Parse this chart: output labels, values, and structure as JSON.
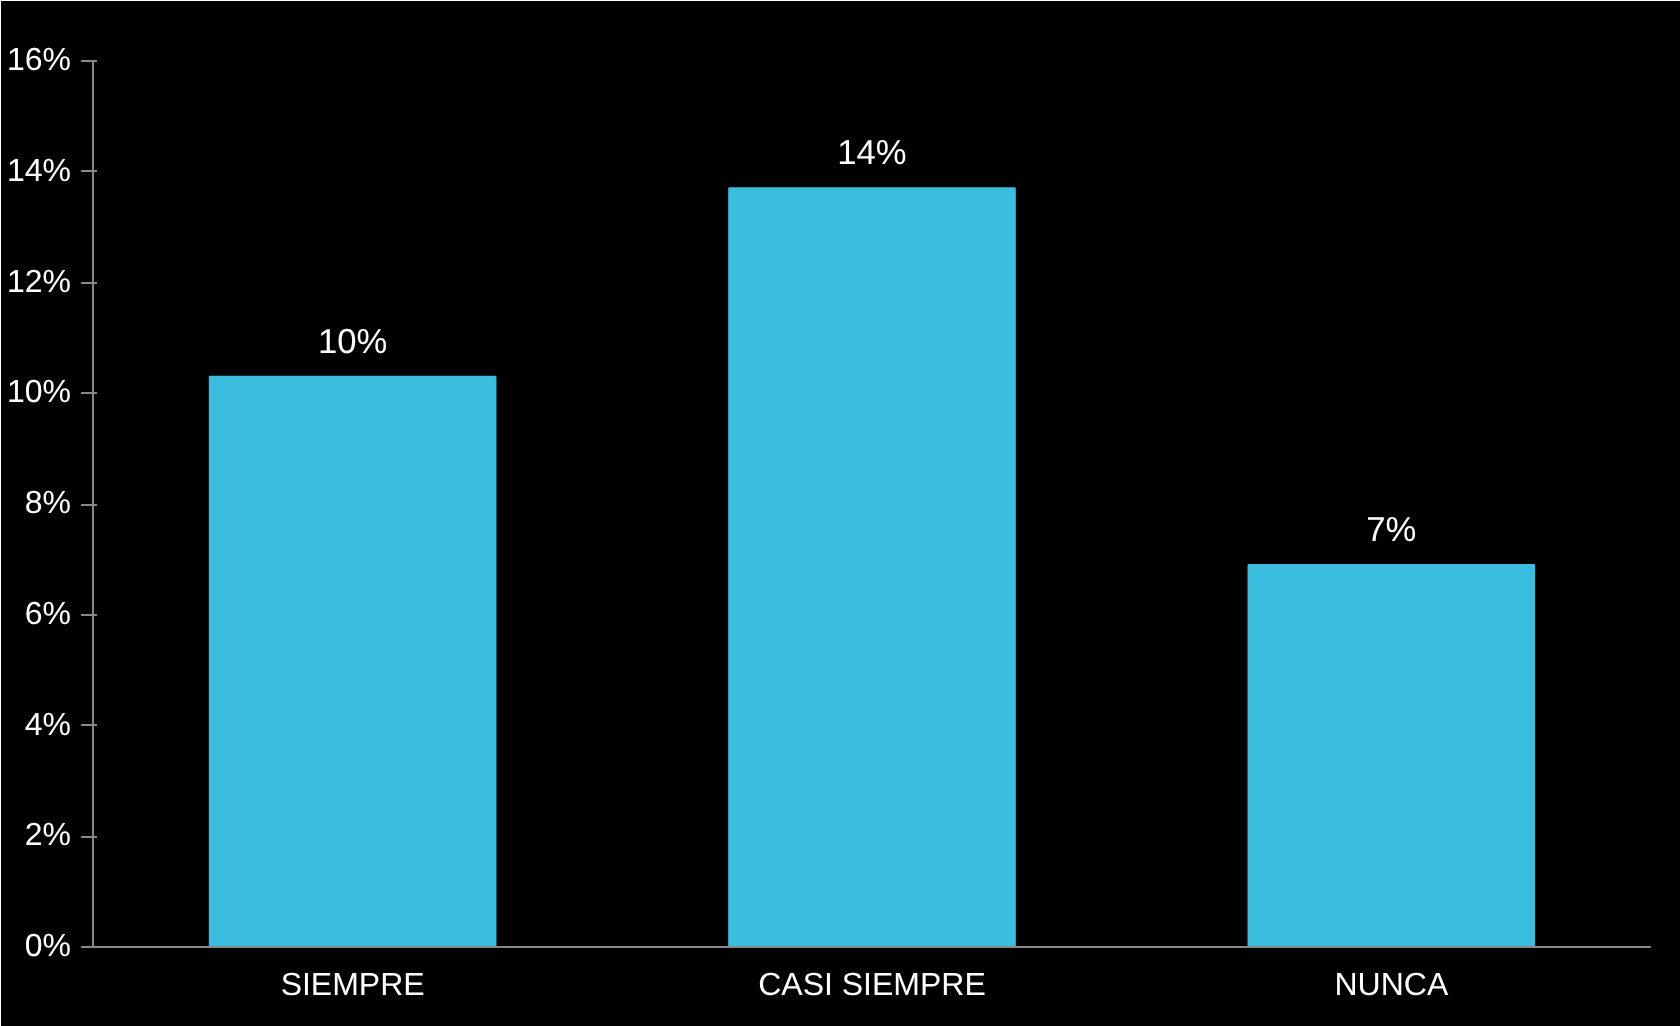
{
  "chart_data": {
    "type": "bar",
    "categories": [
      "SIEMPRE",
      "CASI SIEMPRE",
      "NUNCA"
    ],
    "values": [
      10.3,
      13.7,
      6.9
    ],
    "value_labels": [
      "10%",
      "14%",
      "7%"
    ],
    "color": "#3bbde0",
    "ylim": [
      0,
      16
    ],
    "yticks": [
      {
        "value": 0,
        "label": "0%"
      },
      {
        "value": 2,
        "label": "2%"
      },
      {
        "value": 4,
        "label": "4%"
      },
      {
        "value": 6,
        "label": "6%"
      },
      {
        "value": 8,
        "label": "8%"
      },
      {
        "value": 10,
        "label": "10%"
      },
      {
        "value": 12,
        "label": "12%"
      },
      {
        "value": 14,
        "label": "14%"
      },
      {
        "value": 16,
        "label": "16%"
      }
    ],
    "grid": false
  }
}
